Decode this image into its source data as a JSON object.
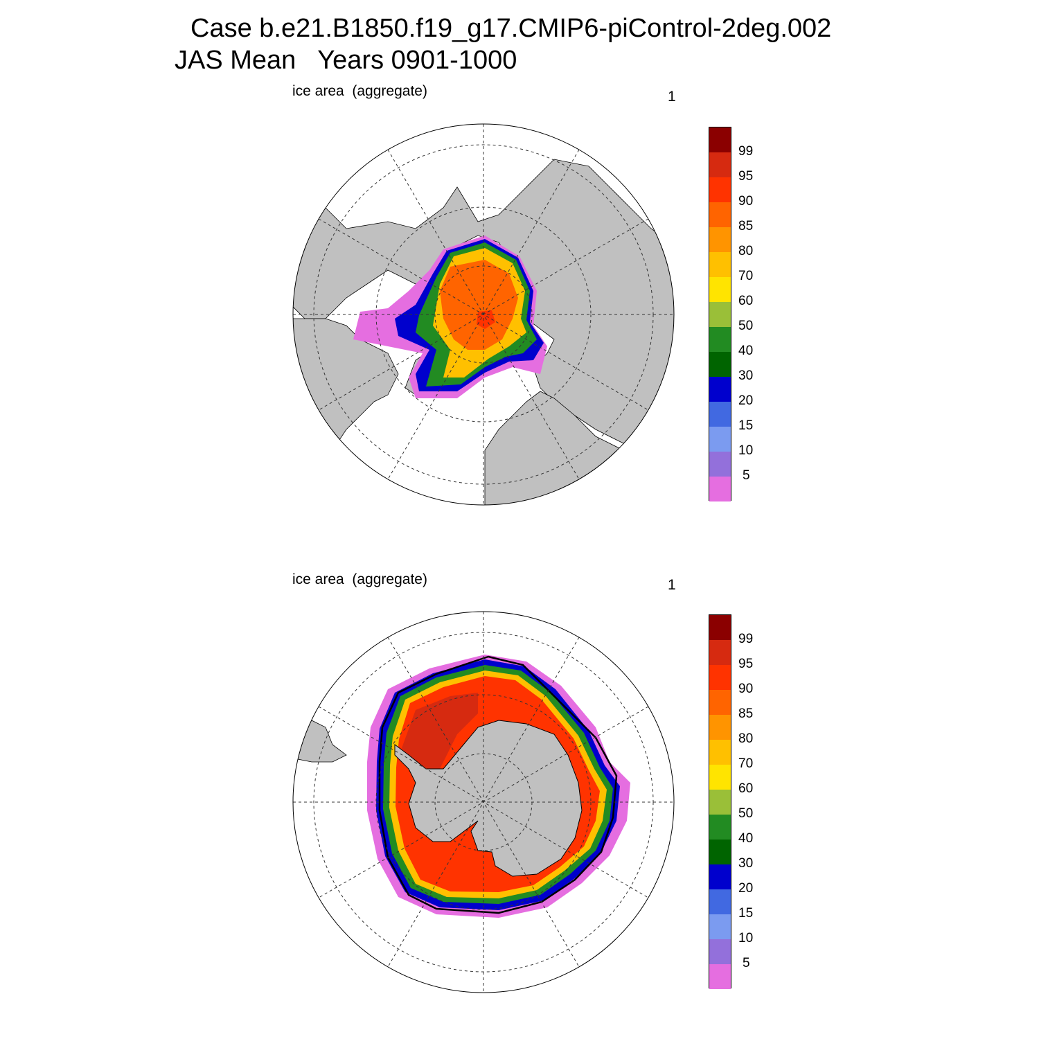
{
  "title": {
    "line1": "Case b.e21.B1850.f19_g17.CMIP6-piControl-2deg.002",
    "line2": "JAS Mean   Years 0901-1000"
  },
  "panels": [
    {
      "label": "ice area  (aggregate)",
      "number": "1",
      "hemisphere": "north"
    },
    {
      "label": "ice area  (aggregate)",
      "number": "1",
      "hemisphere": "south"
    }
  ],
  "colorbar": {
    "labels": [
      "99",
      "95",
      "90",
      "85",
      "80",
      "70",
      "60",
      "50",
      "40",
      "30",
      "20",
      "15",
      "10",
      "5"
    ],
    "colors": [
      "#8b0000",
      "#d62a10",
      "#ff3300",
      "#ff6400",
      "#ff9400",
      "#ffc000",
      "#ffe400",
      "#9abf38",
      "#228b22",
      "#006400",
      "#0000cd",
      "#4169e1",
      "#7b9bf0",
      "#9370db",
      "#e56ee0"
    ]
  },
  "map_colors": {
    "land": "#c0c0c0",
    "ocean": "#ffffff",
    "grid": "#333333"
  }
}
